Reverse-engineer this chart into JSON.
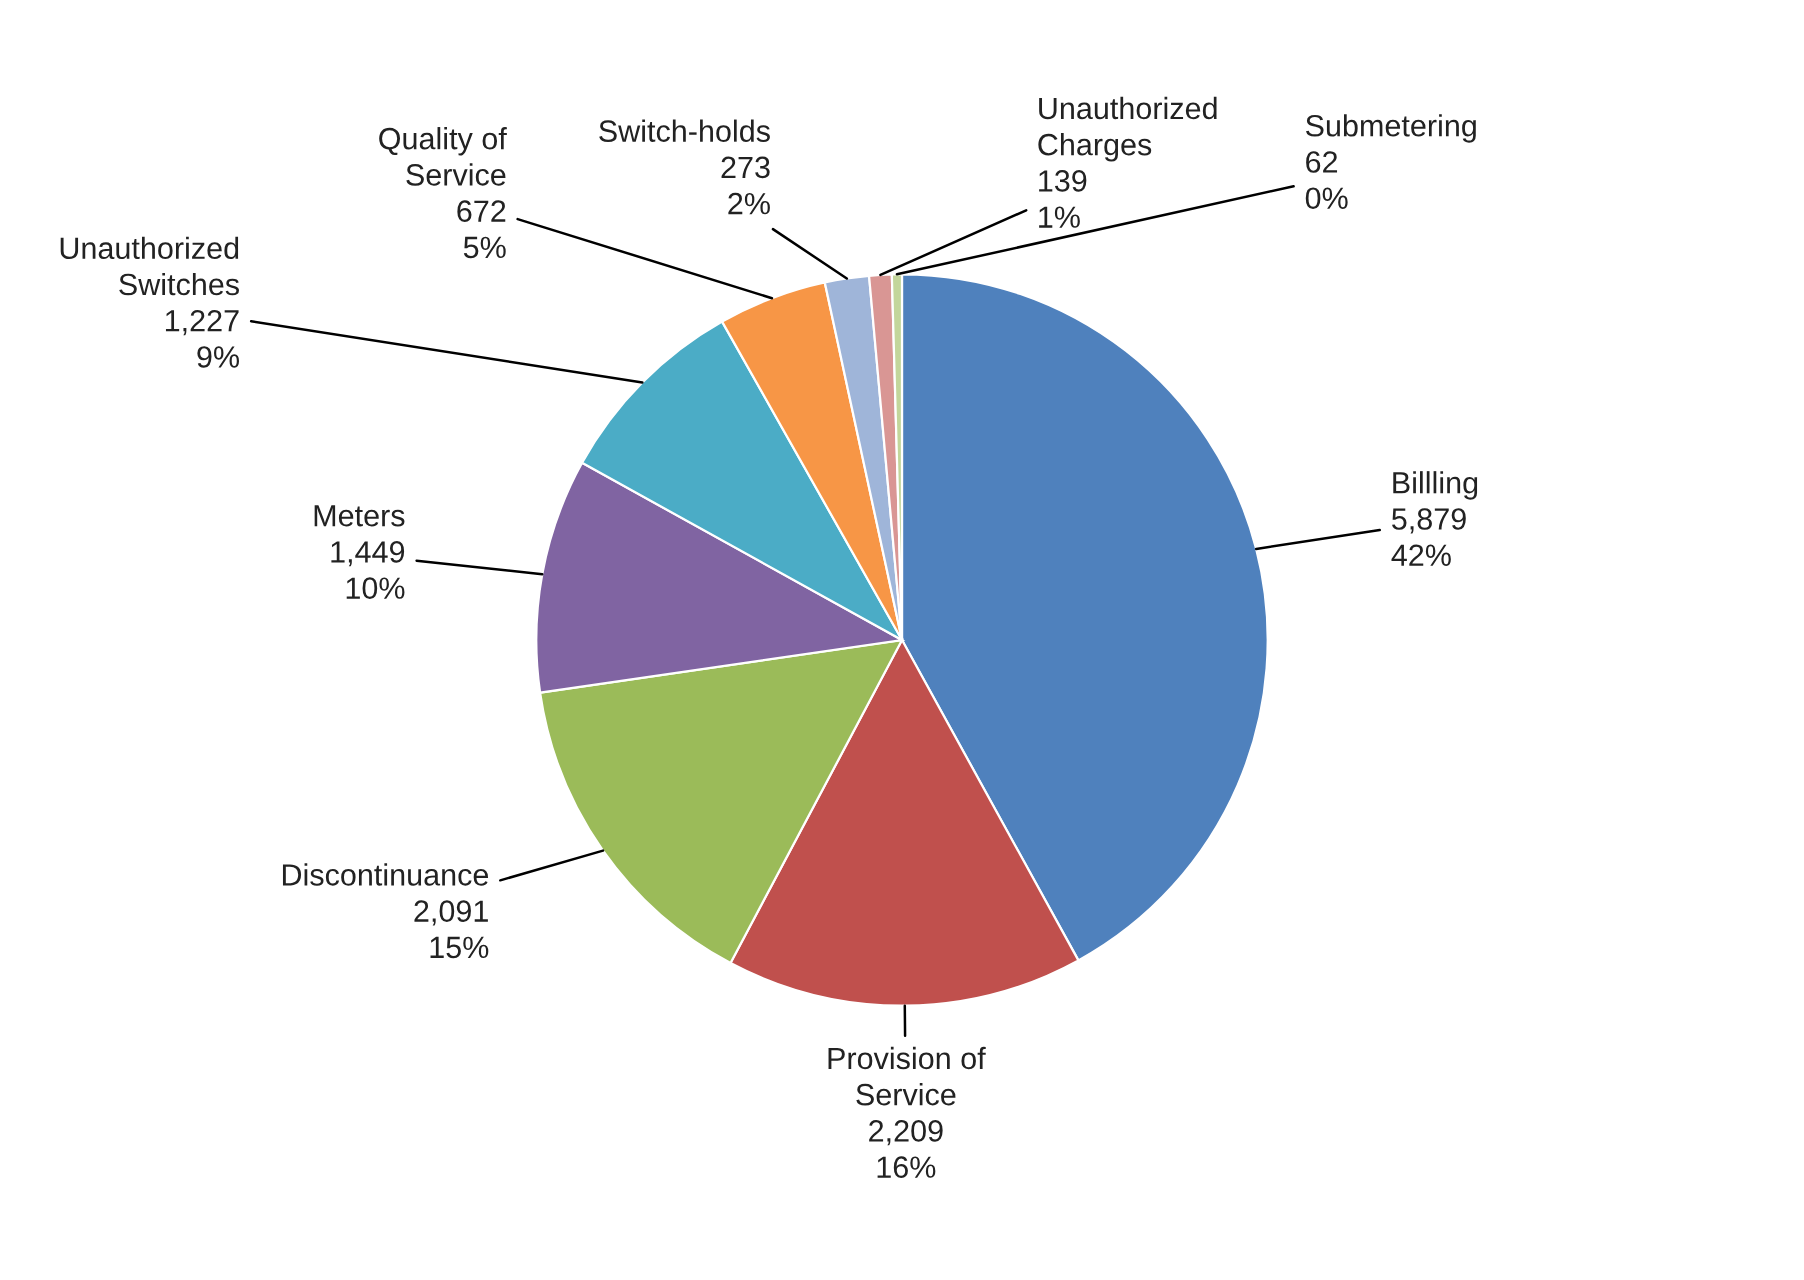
{
  "chart_data": {
    "type": "pie",
    "categories": [
      "Billling",
      "Provision of Service",
      "Discontinuance",
      "Meters",
      "Unauthorized Switches",
      "Quality of Service",
      "Switch-holds",
      "Unauthorized Charges",
      "Submetering"
    ],
    "values": [
      5879,
      2209,
      2091,
      1449,
      1227,
      672,
      273,
      139,
      62
    ],
    "value_labels": [
      "5,879\n42%",
      "2,209\n16%",
      "2,091\n15%",
      "1,449\n10%",
      "1,227\n9%",
      "672\n5%",
      "273\n2%",
      "139\n1%",
      "62\n0%"
    ],
    "colors": [
      "#4f81bd",
      "#c0504d",
      "#9bbb59",
      "#8064a2",
      "#4bacc6",
      "#f79646",
      "#9fb5d9",
      "#d99694",
      "#c3d69b"
    ],
    "legend": false
  }
}
